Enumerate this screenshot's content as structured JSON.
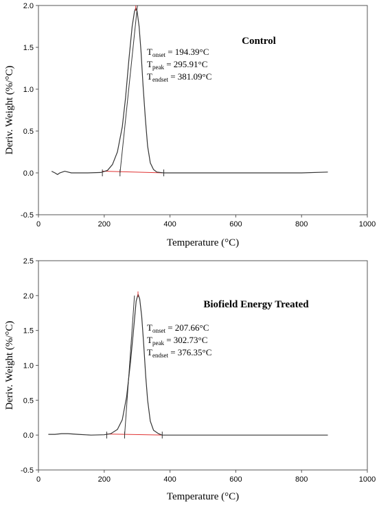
{
  "chart_data": [
    {
      "type": "line",
      "title": "Control",
      "xlabel": "Temperature (°C)",
      "ylabel": "Deriv. Weight (%/°C)",
      "xlim": [
        0,
        1000
      ],
      "ylim": [
        -0.5,
        2.0
      ],
      "x_ticks": [
        "0",
        "200",
        "400",
        "600",
        "800",
        "1000"
      ],
      "y_ticks": [
        "-0.5",
        "0.0",
        "0.5",
        "1.0",
        "1.5",
        "2.0"
      ],
      "grid": false,
      "annotations": [
        {
          "symbol": "T",
          "sub": "onset",
          "value": " = 194.39°C"
        },
        {
          "symbol": "T",
          "sub": "peak",
          "value": " = 295.91°C"
        },
        {
          "symbol": "T",
          "sub": "endset",
          "value": " = 381.09°C"
        }
      ],
      "series": [
        {
          "color": "#333333",
          "x": [
            40,
            50,
            58,
            65,
            80,
            100,
            150,
            190,
            210,
            225,
            240,
            255,
            265,
            275,
            285,
            292,
            296,
            300,
            306,
            312,
            318,
            325,
            332,
            340,
            350,
            360,
            381,
            420,
            500,
            600,
            700,
            800,
            880
          ],
          "y": [
            0.02,
            0.0,
            -0.02,
            0.0,
            0.02,
            0.0,
            0.0,
            0.005,
            0.03,
            0.1,
            0.25,
            0.55,
            0.9,
            1.35,
            1.75,
            1.93,
            1.97,
            1.93,
            1.75,
            1.45,
            1.05,
            0.65,
            0.32,
            0.12,
            0.04,
            0.01,
            0.0,
            0.0,
            0.0,
            0.0,
            0.0,
            0.0,
            0.01
          ]
        }
      ],
      "markers": {
        "onset_x": 194.39,
        "peak_x": 295.91,
        "endset_x": 381.09,
        "tangent": {
          "x": [
            248,
            301
          ],
          "y": [
            0.0,
            2.0
          ]
        },
        "baseline": {
          "x": [
            194.39,
            381.09
          ],
          "y": [
            0.02,
            0.0
          ],
          "color": "#e03030"
        },
        "peak_marker_color": "#e03030"
      }
    },
    {
      "type": "line",
      "title": "Biofield Energy Treated",
      "xlabel": "Temperature (°C)",
      "ylabel": "Deriv. Weight (%/°C)",
      "xlim": [
        0,
        1000
      ],
      "ylim": [
        -0.5,
        2.5
      ],
      "x_ticks": [
        "0",
        "200",
        "400",
        "600",
        "800",
        "1000"
      ],
      "y_ticks": [
        "-0.5",
        "0.0",
        "0.5",
        "1.0",
        "1.5",
        "2.0",
        "2.5"
      ],
      "grid": false,
      "annotations": [
        {
          "symbol": "T",
          "sub": "onset",
          "value": " = 207.66°C"
        },
        {
          "symbol": "T",
          "sub": "peak",
          "value": " = 302.73°C"
        },
        {
          "symbol": "T",
          "sub": "endset",
          "value": " = 376.35°C"
        }
      ],
      "series": [
        {
          "color": "#333333",
          "x": [
            30,
            50,
            70,
            90,
            120,
            160,
            200,
            220,
            240,
            255,
            268,
            280,
            290,
            297,
            303,
            308,
            314,
            320,
            326,
            332,
            340,
            350,
            365,
            376,
            420,
            500,
            600,
            700,
            800,
            880
          ],
          "y": [
            0.01,
            0.01,
            0.02,
            0.02,
            0.01,
            0.0,
            0.005,
            0.02,
            0.08,
            0.22,
            0.55,
            1.05,
            1.55,
            1.92,
            2.02,
            1.95,
            1.7,
            1.3,
            0.85,
            0.5,
            0.2,
            0.07,
            0.02,
            0.0,
            0.0,
            0.0,
            0.0,
            0.0,
            0.0,
            0.0
          ]
        }
      ],
      "markers": {
        "onset_x": 207.66,
        "peak_x": 302.73,
        "endset_x": 376.35,
        "tangent": {
          "x": [
            262,
            292
          ],
          "y": [
            0.0,
            2.0
          ]
        },
        "baseline": {
          "x": [
            207.66,
            376.35
          ],
          "y": [
            0.015,
            0.0
          ],
          "color": "#e03030"
        },
        "peak_marker_color": "#e03030"
      }
    }
  ]
}
